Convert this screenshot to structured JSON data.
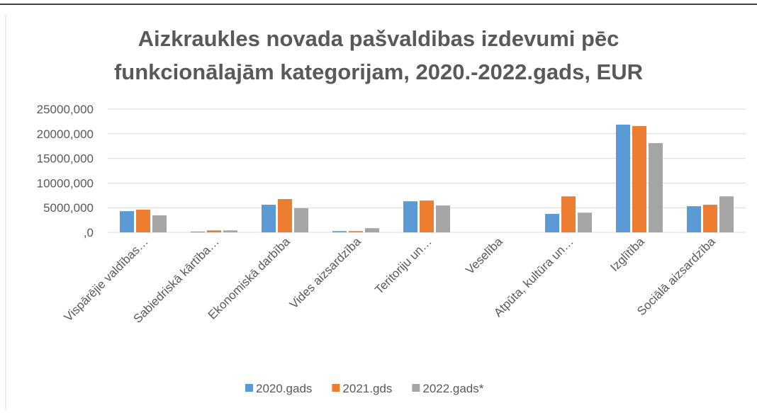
{
  "chart_data": {
    "type": "bar",
    "title": [
      "Aizkraukles novada pašvaldibas izdevumi pēc",
      "funkcionālajām kategorijam, 2020.-2022.gads, EUR"
    ],
    "categories": [
      "Vispārējie valdības…",
      "Sabiedriskā kārtība…",
      "Ekonomiskā darbība",
      "Vides aizsardzība",
      "Teritoriju un…",
      "Veselība",
      "Atpūta, kultūra un…",
      "Izglītība",
      "Sociālā aizsardzība"
    ],
    "series": [
      {
        "name": "2020.gads",
        "color": "#5b9bd5",
        "values": [
          4300,
          150,
          5600,
          250,
          6300,
          0,
          3750,
          21850,
          5300
        ]
      },
      {
        "name": "2021.gds",
        "color": "#ed7d31",
        "values": [
          4600,
          400,
          6750,
          250,
          6450,
          0,
          7300,
          21550,
          5600
        ]
      },
      {
        "name": "2022.gads*",
        "color": "#a5a5a5",
        "values": [
          3450,
          400,
          4900,
          850,
          5450,
          0,
          4000,
          18100,
          7300
        ]
      }
    ],
    "ylim": [
      0,
      25000
    ],
    "yticks": [
      {
        "value": 0,
        "label": ",0"
      },
      {
        "value": 5000,
        "label": "5000,000"
      },
      {
        "value": 10000,
        "label": "10000,000"
      },
      {
        "value": 15000,
        "label": "15000,000"
      },
      {
        "value": 20000,
        "label": "20000,000"
      },
      {
        "value": 25000,
        "label": "25000,000"
      }
    ],
    "grid": true,
    "legend": "bottom"
  }
}
